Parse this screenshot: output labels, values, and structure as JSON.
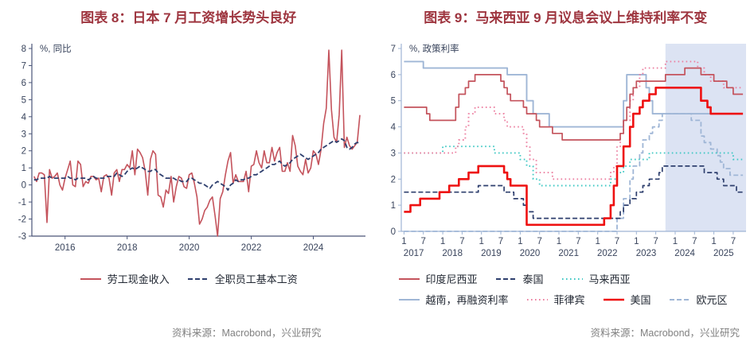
{
  "page": {
    "background": "#FFFFFF",
    "title_color": "#9E353F"
  },
  "chart_data": [
    {
      "type": "line",
      "title": "图表 8：日本 7 月工资增长势头良好",
      "unit_label": "%, 同比",
      "source": "资料来源：Macrobond，兴业研究",
      "ylim": [
        -3,
        8
      ],
      "yticks": [
        -3,
        -2,
        -1,
        0,
        1,
        2,
        3,
        4,
        5,
        6,
        7,
        8
      ],
      "xlim_years": [
        2014.93,
        2025.68
      ],
      "xticks": [
        2016,
        2018,
        2020,
        2022,
        2024
      ],
      "axis_color": "#4A5578",
      "tick_label_color": "#39445C",
      "start": "2015-01",
      "series": [
        {
          "name": "劳工现金收入",
          "color": "#C4535C",
          "style": "solid",
          "width": 1.6,
          "values": [
            0.5,
            0.2,
            0.7,
            0.7,
            0.6,
            -2.2,
            0.9,
            0.4,
            0.5,
            0.7,
            0.0,
            -0.3,
            0.4,
            0.9,
            1.4,
            0.0,
            -0.1,
            1.4,
            1.2,
            -0.1,
            0.2,
            0.1,
            0.5,
            0.5,
            0.3,
            0.4,
            -0.4,
            0.5,
            0.6,
            0.4,
            -0.6,
            0.7,
            0.9,
            0.2,
            0.9,
            0.9,
            1.2,
            1.0,
            2.0,
            0.6,
            2.1,
            1.9,
            1.6,
            0.8,
            -0.6,
            1.5,
            2.0,
            1.8,
            -0.6,
            -0.7,
            -1.3,
            -0.3,
            -0.5,
            0.5,
            -1.0,
            -0.1,
            0.5,
            0.4,
            -0.1,
            -0.2,
            0.6,
            0.7,
            0.1,
            -0.7,
            -2.3,
            -2.0,
            -1.5,
            -1.3,
            -0.9,
            -0.7,
            -1.8,
            -3.0,
            -0.8,
            -0.4,
            0.6,
            1.4,
            1.9,
            0.1,
            0.6,
            0.2,
            0.2,
            0.2,
            0.8,
            -0.4,
            1.1,
            1.2,
            2.0,
            1.3,
            1.0,
            2.0,
            1.3,
            1.3,
            2.2,
            1.4,
            1.9,
            2.2,
            0.8,
            0.8,
            1.3,
            0.8,
            2.9,
            2.3,
            1.1,
            0.8,
            0.6,
            1.5,
            0.7,
            1.0,
            2.0,
            1.8,
            1.2,
            2.1,
            3.6,
            4.5,
            7.9,
            4.4,
            2.8,
            2.5,
            4.1,
            7.9,
            2.2,
            2.8,
            2.3,
            2.1,
            2.3,
            2.5,
            4.1
          ]
        },
        {
          "name": "全职员工基本工资",
          "color": "#2E3F6E",
          "style": "dashed",
          "width": 1.8,
          "values": [
            0.3,
            0.3,
            0.4,
            0.4,
            0.4,
            0.4,
            0.5,
            0.4,
            0.4,
            0.4,
            0.4,
            0.4,
            0.4,
            0.5,
            0.4,
            0.4,
            0.3,
            0.4,
            0.4,
            0.4,
            0.4,
            0.3,
            0.4,
            0.5,
            0.4,
            0.4,
            0.4,
            0.4,
            0.5,
            0.5,
            0.5,
            0.5,
            0.7,
            0.6,
            0.5,
            0.6,
            0.8,
            0.9,
            1.0,
            0.9,
            1.0,
            1.1,
            1.0,
            0.9,
            0.8,
            0.8,
            0.9,
            0.9,
            0.7,
            0.6,
            0.5,
            0.4,
            0.4,
            0.4,
            0.4,
            0.3,
            0.3,
            0.2,
            0.2,
            0.2,
            0.4,
            0.4,
            0.3,
            0.2,
            0.1,
            0.1,
            0.0,
            -0.1,
            -0.2,
            0.0,
            0.1,
            0.2,
            0.1,
            0.0,
            -0.1,
            -0.3,
            0.0,
            0.1,
            0.3,
            0.2,
            0.3,
            0.3,
            0.4,
            0.4,
            0.5,
            0.6,
            0.6,
            0.7,
            0.8,
            0.9,
            1.0,
            1.1,
            1.2,
            1.2,
            1.3,
            1.4,
            1.2,
            1.1,
            1.2,
            1.3,
            1.5,
            1.6,
            1.7,
            1.8,
            1.7,
            1.6,
            1.5,
            1.6,
            1.7,
            1.8,
            1.9,
            2.1,
            2.2,
            2.3,
            2.4,
            2.5,
            2.6,
            2.5,
            2.6,
            2.7,
            2.6,
            2.2,
            2.1,
            2.2,
            2.4,
            2.5,
            2.4
          ]
        }
      ]
    },
    {
      "type": "step-line",
      "title": "图表 9：马来西亚 9 月议息会议上维持利率不变",
      "unit_label": "%, 政策利率",
      "source": "资料来源：Macrobond，兴业研究",
      "ylim": [
        0,
        7
      ],
      "yticks": [
        0,
        1,
        2,
        3,
        4,
        5,
        6,
        7
      ],
      "xlim_years": [
        2016.93,
        2025.83
      ],
      "x_end": "2025-10",
      "month_tick_labels": [
        "1",
        "7"
      ],
      "year_labels": [
        2017,
        2018,
        2019,
        2020,
        2021,
        2022,
        2023,
        2024,
        2025
      ],
      "band": {
        "from": "2023-10",
        "to": "2025-11",
        "color": "#DCE3F3"
      },
      "axis_color": "#9FB4D4",
      "tick_label_color": "#39445C",
      "series": [
        {
          "name": "印度尼西亚",
          "color": "#C4535C",
          "style": "solid",
          "width": 1.7,
          "steps": [
            [
              "2017-01",
              4.75
            ],
            [
              "2017-08",
              4.5
            ],
            [
              "2017-09",
              4.25
            ],
            [
              "2018-05",
              4.75
            ],
            [
              "2018-06",
              5.25
            ],
            [
              "2018-08",
              5.5
            ],
            [
              "2018-09",
              5.75
            ],
            [
              "2018-11",
              6.0
            ],
            [
              "2019-07",
              5.75
            ],
            [
              "2019-08",
              5.5
            ],
            [
              "2019-09",
              5.25
            ],
            [
              "2019-10",
              5.0
            ],
            [
              "2020-02",
              4.75
            ],
            [
              "2020-03",
              4.5
            ],
            [
              "2020-06",
              4.25
            ],
            [
              "2020-07",
              4.0
            ],
            [
              "2020-11",
              3.75
            ],
            [
              "2021-02",
              3.5
            ],
            [
              "2022-08",
              3.75
            ],
            [
              "2022-09",
              4.25
            ],
            [
              "2022-10",
              4.75
            ],
            [
              "2022-11",
              5.25
            ],
            [
              "2022-12",
              5.5
            ],
            [
              "2023-01",
              5.75
            ],
            [
              "2023-10",
              6.0
            ],
            [
              "2024-04",
              6.25
            ],
            [
              "2024-09",
              6.0
            ],
            [
              "2025-01",
              5.75
            ],
            [
              "2025-05",
              5.5
            ],
            [
              "2025-07",
              5.25
            ]
          ]
        },
        {
          "name": "泰国",
          "color": "#2E3F6E",
          "style": "dashed",
          "width": 1.7,
          "steps": [
            [
              "2017-01",
              1.5
            ],
            [
              "2018-12",
              1.75
            ],
            [
              "2019-08",
              1.5
            ],
            [
              "2019-11",
              1.25
            ],
            [
              "2020-02",
              1.0
            ],
            [
              "2020-03",
              0.75
            ],
            [
              "2020-05",
              0.5
            ],
            [
              "2022-08",
              0.75
            ],
            [
              "2022-09",
              1.0
            ],
            [
              "2022-11",
              1.25
            ],
            [
              "2023-01",
              1.5
            ],
            [
              "2023-03",
              1.75
            ],
            [
              "2023-05",
              2.0
            ],
            [
              "2023-08",
              2.25
            ],
            [
              "2023-09",
              2.5
            ],
            [
              "2024-10",
              2.25
            ],
            [
              "2025-02",
              2.0
            ],
            [
              "2025-04",
              1.75
            ],
            [
              "2025-08",
              1.5
            ]
          ]
        },
        {
          "name": "马来西亚",
          "color": "#3FC8C4",
          "style": "dotted",
          "width": 1.9,
          "steps": [
            [
              "2017-01",
              3.0
            ],
            [
              "2018-01",
              3.25
            ],
            [
              "2019-05",
              3.0
            ],
            [
              "2020-01",
              2.75
            ],
            [
              "2020-03",
              2.5
            ],
            [
              "2020-05",
              2.0
            ],
            [
              "2020-07",
              1.75
            ],
            [
              "2022-05",
              2.0
            ],
            [
              "2022-07",
              2.25
            ],
            [
              "2022-09",
              2.5
            ],
            [
              "2022-11",
              2.75
            ],
            [
              "2023-05",
              3.0
            ],
            [
              "2025-07",
              2.75
            ]
          ]
        },
        {
          "name": "越南，再融资利率",
          "color": "#9FB6D6",
          "style": "solid",
          "width": 1.9,
          "steps": [
            [
              "2017-01",
              6.5
            ],
            [
              "2017-07",
              6.25
            ],
            [
              "2019-09",
              6.0
            ],
            [
              "2020-03",
              5.0
            ],
            [
              "2020-05",
              4.5
            ],
            [
              "2020-10",
              4.0
            ],
            [
              "2022-09",
              5.0
            ],
            [
              "2022-10",
              6.0
            ],
            [
              "2023-04",
              5.5
            ],
            [
              "2023-05",
              5.0
            ],
            [
              "2023-06",
              4.5
            ]
          ]
        },
        {
          "name": "菲律宾",
          "color": "#EC7FA0",
          "style": "dotted",
          "width": 1.9,
          "steps": [
            [
              "2017-01",
              3.0
            ],
            [
              "2018-05",
              3.25
            ],
            [
              "2018-06",
              3.5
            ],
            [
              "2018-08",
              4.0
            ],
            [
              "2018-09",
              4.5
            ],
            [
              "2018-11",
              4.75
            ],
            [
              "2019-05",
              4.5
            ],
            [
              "2019-08",
              4.25
            ],
            [
              "2019-09",
              4.0
            ],
            [
              "2020-02",
              3.75
            ],
            [
              "2020-03",
              3.25
            ],
            [
              "2020-04",
              2.75
            ],
            [
              "2020-06",
              2.25
            ],
            [
              "2020-11",
              2.0
            ],
            [
              "2022-05",
              2.25
            ],
            [
              "2022-06",
              2.5
            ],
            [
              "2022-07",
              3.25
            ],
            [
              "2022-08",
              3.75
            ],
            [
              "2022-09",
              4.25
            ],
            [
              "2022-11",
              5.0
            ],
            [
              "2022-12",
              5.5
            ],
            [
              "2023-02",
              6.0
            ],
            [
              "2023-03",
              6.25
            ],
            [
              "2023-10",
              6.5
            ],
            [
              "2024-08",
              6.25
            ],
            [
              "2024-10",
              6.0
            ],
            [
              "2024-12",
              5.75
            ],
            [
              "2025-04",
              5.5
            ]
          ]
        },
        {
          "name": "美国",
          "color": "#EE1111",
          "style": "solid",
          "width": 2.6,
          "steps": [
            [
              "2017-01",
              0.75
            ],
            [
              "2017-03",
              1.0
            ],
            [
              "2017-06",
              1.25
            ],
            [
              "2017-12",
              1.5
            ],
            [
              "2018-03",
              1.75
            ],
            [
              "2018-06",
              2.0
            ],
            [
              "2018-09",
              2.25
            ],
            [
              "2018-12",
              2.5
            ],
            [
              "2019-08",
              2.25
            ],
            [
              "2019-09",
              2.0
            ],
            [
              "2019-10",
              1.75
            ],
            [
              "2020-03",
              0.25
            ],
            [
              "2022-03",
              0.5
            ],
            [
              "2022-05",
              1.0
            ],
            [
              "2022-06",
              1.75
            ],
            [
              "2022-07",
              2.5
            ],
            [
              "2022-09",
              3.25
            ],
            [
              "2022-11",
              4.0
            ],
            [
              "2022-12",
              4.5
            ],
            [
              "2023-02",
              4.75
            ],
            [
              "2023-03",
              5.0
            ],
            [
              "2023-05",
              5.25
            ],
            [
              "2023-07",
              5.5
            ],
            [
              "2024-09",
              5.0
            ],
            [
              "2024-11",
              4.75
            ],
            [
              "2024-12",
              4.5
            ]
          ]
        },
        {
          "name": "欧元区",
          "color": "#9FB6D6",
          "style": "dashed",
          "width": 1.8,
          "steps": [
            [
              "2017-01",
              0.0
            ],
            [
              "2022-07",
              0.5
            ],
            [
              "2022-09",
              1.25
            ],
            [
              "2022-11",
              2.0
            ],
            [
              "2022-12",
              2.5
            ],
            [
              "2023-02",
              3.0
            ],
            [
              "2023-03",
              3.5
            ],
            [
              "2023-05",
              3.75
            ],
            [
              "2023-06",
              4.0
            ],
            [
              "2023-08",
              4.25
            ],
            [
              "2023-09",
              4.5
            ],
            [
              "2024-06",
              4.25
            ],
            [
              "2024-09",
              3.65
            ],
            [
              "2024-10",
              3.4
            ],
            [
              "2024-12",
              3.15
            ],
            [
              "2025-02",
              2.9
            ],
            [
              "2025-03",
              2.65
            ],
            [
              "2025-04",
              2.4
            ],
            [
              "2025-06",
              2.15
            ]
          ]
        }
      ]
    }
  ]
}
